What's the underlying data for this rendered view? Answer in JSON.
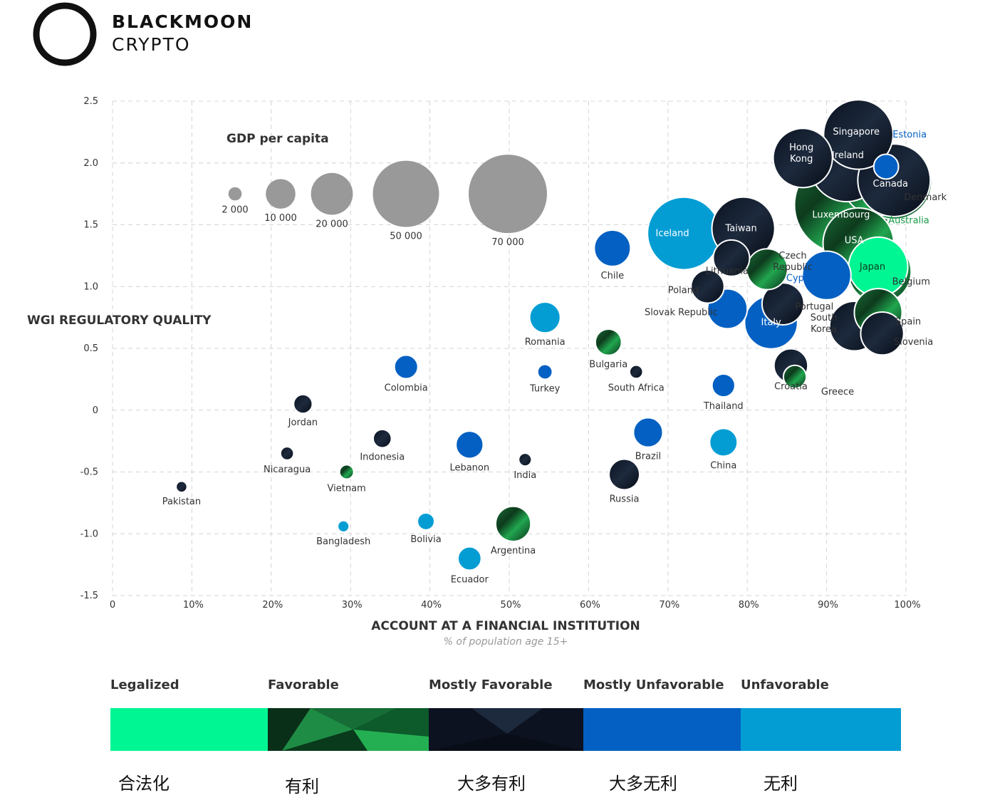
{
  "brand": {
    "line1": "BLACKMOON",
    "line2": "CRYPTO"
  },
  "chart_data": {
    "type": "scatter",
    "xlabel": "ACCOUNT AT A FINANCIAL INSTITUTION",
    "xsublabel": "% of population age 15+",
    "ylabel": "WGI REGULATORY QUALITY",
    "xlim": [
      0,
      100
    ],
    "ylim": [
      -1.5,
      2.5
    ],
    "xticks": [
      "0",
      "10%",
      "20%",
      "30%",
      "40%",
      "50%",
      "60%",
      "70%",
      "80%",
      "90%",
      "100%"
    ],
    "yticks": [
      "2.5",
      "2.0",
      "1.5",
      "1.0",
      "0.5",
      "0",
      "-0.5",
      "-1.0",
      "-1.5"
    ],
    "grid": true,
    "size_legend": {
      "title": "GDP per capita",
      "items": [
        {
          "label": "2 000",
          "value": 2000
        },
        {
          "label": "10 000",
          "value": 10000
        },
        {
          "label": "20 000",
          "value": 20000
        },
        {
          "label": "50 000",
          "value": 50000
        },
        {
          "label": "70 000",
          "value": 70000
        }
      ]
    },
    "categories": [
      {
        "name": "Legalized",
        "color": "#00f593"
      },
      {
        "name": "Favorable",
        "color": "#0f8a3a"
      },
      {
        "name": "Mostly Favorable",
        "color": "#0c1220"
      },
      {
        "name": "Mostly Unfavorable",
        "color": "#0460c2"
      },
      {
        "name": "Unfavorable",
        "color": "#039dd4"
      }
    ],
    "points": [
      {
        "label": "Pakistan",
        "x": 8.7,
        "y": -0.62,
        "gdp": 1400,
        "cat": 2
      },
      {
        "label": "Jordan",
        "x": 24.0,
        "y": 0.05,
        "gdp": 4000,
        "cat": 2
      },
      {
        "label": "Nicaragua",
        "x": 22.0,
        "y": -0.35,
        "gdp": 2000,
        "cat": 2
      },
      {
        "label": "Vietnam",
        "x": 29.5,
        "y": -0.5,
        "gdp": 2300,
        "cat": 1
      },
      {
        "label": "Bangladesh",
        "x": 29.1,
        "y": -0.94,
        "gdp": 1500,
        "cat": 4
      },
      {
        "label": "Indonesia",
        "x": 34.0,
        "y": -0.23,
        "gdp": 3800,
        "cat": 2
      },
      {
        "label": "Colombia",
        "x": 37.0,
        "y": 0.35,
        "gdp": 6300,
        "cat": 3
      },
      {
        "label": "Bolivia",
        "x": 39.5,
        "y": -0.9,
        "gdp": 3300,
        "cat": 4
      },
      {
        "label": "Lebanon",
        "x": 45.0,
        "y": -0.28,
        "gdp": 8500,
        "cat": 3
      },
      {
        "label": "Ecuador",
        "x": 45.0,
        "y": -1.2,
        "gdp": 6200,
        "cat": 4
      },
      {
        "label": "Argentina",
        "x": 50.5,
        "y": -0.92,
        "gdp": 14000,
        "cat": 1
      },
      {
        "label": "India",
        "x": 52.0,
        "y": -0.4,
        "gdp": 1900,
        "cat": 2
      },
      {
        "label": "Turkey",
        "x": 54.5,
        "y": 0.31,
        "gdp": 2500,
        "cat": 3
      },
      {
        "label": "Romania",
        "x": 54.5,
        "y": 0.75,
        "gdp": 10800,
        "cat": 4
      },
      {
        "label": "Bulgaria",
        "x": 62.5,
        "y": 0.55,
        "gdp": 7800,
        "cat": 1
      },
      {
        "label": "Chile",
        "x": 63.0,
        "y": 1.31,
        "gdp": 15000,
        "cat": 3
      },
      {
        "label": "South Africa",
        "x": 66.0,
        "y": 0.31,
        "gdp": 2000,
        "cat": 2
      },
      {
        "label": "Russia",
        "x": 64.5,
        "y": -0.52,
        "gdp": 10700,
        "cat": 2
      },
      {
        "label": "Brazil",
        "x": 67.5,
        "y": -0.18,
        "gdp": 9800,
        "cat": 3
      },
      {
        "label": "Thailand",
        "x": 77.0,
        "y": 0.2,
        "gdp": 6000,
        "cat": 3
      },
      {
        "label": "China",
        "x": 77.0,
        "y": -0.26,
        "gdp": 8800,
        "cat": 4
      },
      {
        "label": "Iceland",
        "x": 72.0,
        "y": 1.43,
        "gdp": 60000,
        "cat": 4
      },
      {
        "label": "Taiwan",
        "x": 79.5,
        "y": 1.47,
        "gdp": 45000,
        "cat": 2
      },
      {
        "label": "Lithuania",
        "x": 78.0,
        "y": 1.23,
        "gdp": 15000,
        "cat": 2
      },
      {
        "label": "Poland",
        "x": 75.0,
        "y": 1.0,
        "gdp": 12500,
        "cat": 2
      },
      {
        "label": "Slovak Republic",
        "x": 77.5,
        "y": 0.82,
        "gdp": 18000,
        "cat": 3
      },
      {
        "label": "Czech Republic",
        "x": 82.5,
        "y": 1.14,
        "gdp": 19000,
        "cat": 1
      },
      {
        "label": "Cyprus",
        "x": 90.0,
        "y": 1.09,
        "gdp": 27000,
        "cat": 3
      },
      {
        "label": "Portugal",
        "x": 84.5,
        "y": 0.86,
        "gdp": 20000,
        "cat": 2
      },
      {
        "label": "Italy",
        "x": 83.0,
        "y": 0.71,
        "gdp": 32000,
        "cat": 3
      },
      {
        "label": "Croatia",
        "x": 85.5,
        "y": 0.36,
        "gdp": 13000,
        "cat": 2
      },
      {
        "label": "Greece",
        "x": 86.0,
        "y": 0.27,
        "gdp": 6000,
        "cat": 1
      },
      {
        "label": "Singapore",
        "x": 94.0,
        "y": 2.23,
        "gdp": 55000,
        "cat": 2
      },
      {
        "label": "Hong Kong",
        "x": 87.0,
        "y": 2.04,
        "gdp": 40000,
        "cat": 2
      },
      {
        "label": "Ireland",
        "x": 92.5,
        "y": 1.98,
        "gdp": 60000,
        "cat": 2
      },
      {
        "label": "Estonia",
        "x": 97.5,
        "y": 1.97,
        "gdp": 7000,
        "cat": 3
      },
      {
        "label": "Canada",
        "x": 98.5,
        "y": 1.85,
        "gdp": 65000,
        "cat": 1
      },
      {
        "label": "Denmark",
        "x": 98.5,
        "y": 1.86,
        "gdp": 60000,
        "cat": 2
      },
      {
        "label": "Australia",
        "x": 96.5,
        "y": 1.87,
        "gdp": 62000,
        "cat": 1
      },
      {
        "label": "Luxembourg",
        "x": 92.0,
        "y": 1.66,
        "gdp": 105000,
        "cat": 1
      },
      {
        "label": "USA",
        "x": 94.0,
        "y": 1.35,
        "gdp": 57000,
        "cat": 1
      },
      {
        "label": "Japan",
        "x": 96.5,
        "y": 1.16,
        "gdp": 40000,
        "cat": 0
      },
      {
        "label": "Belgium",
        "x": 96.7,
        "y": 1.12,
        "gdp": 45000,
        "cat": 1
      },
      {
        "label": "Spain",
        "x": 96.5,
        "y": 0.79,
        "gdp": 26000,
        "cat": 1
      },
      {
        "label": "South Korea",
        "x": 93.5,
        "y": 0.68,
        "gdp": 28000,
        "cat": 2
      },
      {
        "label": "Slovenia",
        "x": 97.0,
        "y": 0.62,
        "gdp": 21000,
        "cat": 2
      }
    ]
  },
  "legend": {
    "items": [
      {
        "name": "Legalized",
        "cn": "合法化",
        "color": "#00f593"
      },
      {
        "name": "Favorable",
        "cn": "有利",
        "color": "#0f8a3a"
      },
      {
        "name": "Mostly Favorable",
        "cn": "大多有利",
        "color": "#0c1220"
      },
      {
        "name": "Mostly Unfavorable",
        "cn": "大多无利",
        "color": "#0460c2"
      },
      {
        "name": "Unfavorable",
        "cn": "无利",
        "color": "#039dd4"
      }
    ]
  }
}
